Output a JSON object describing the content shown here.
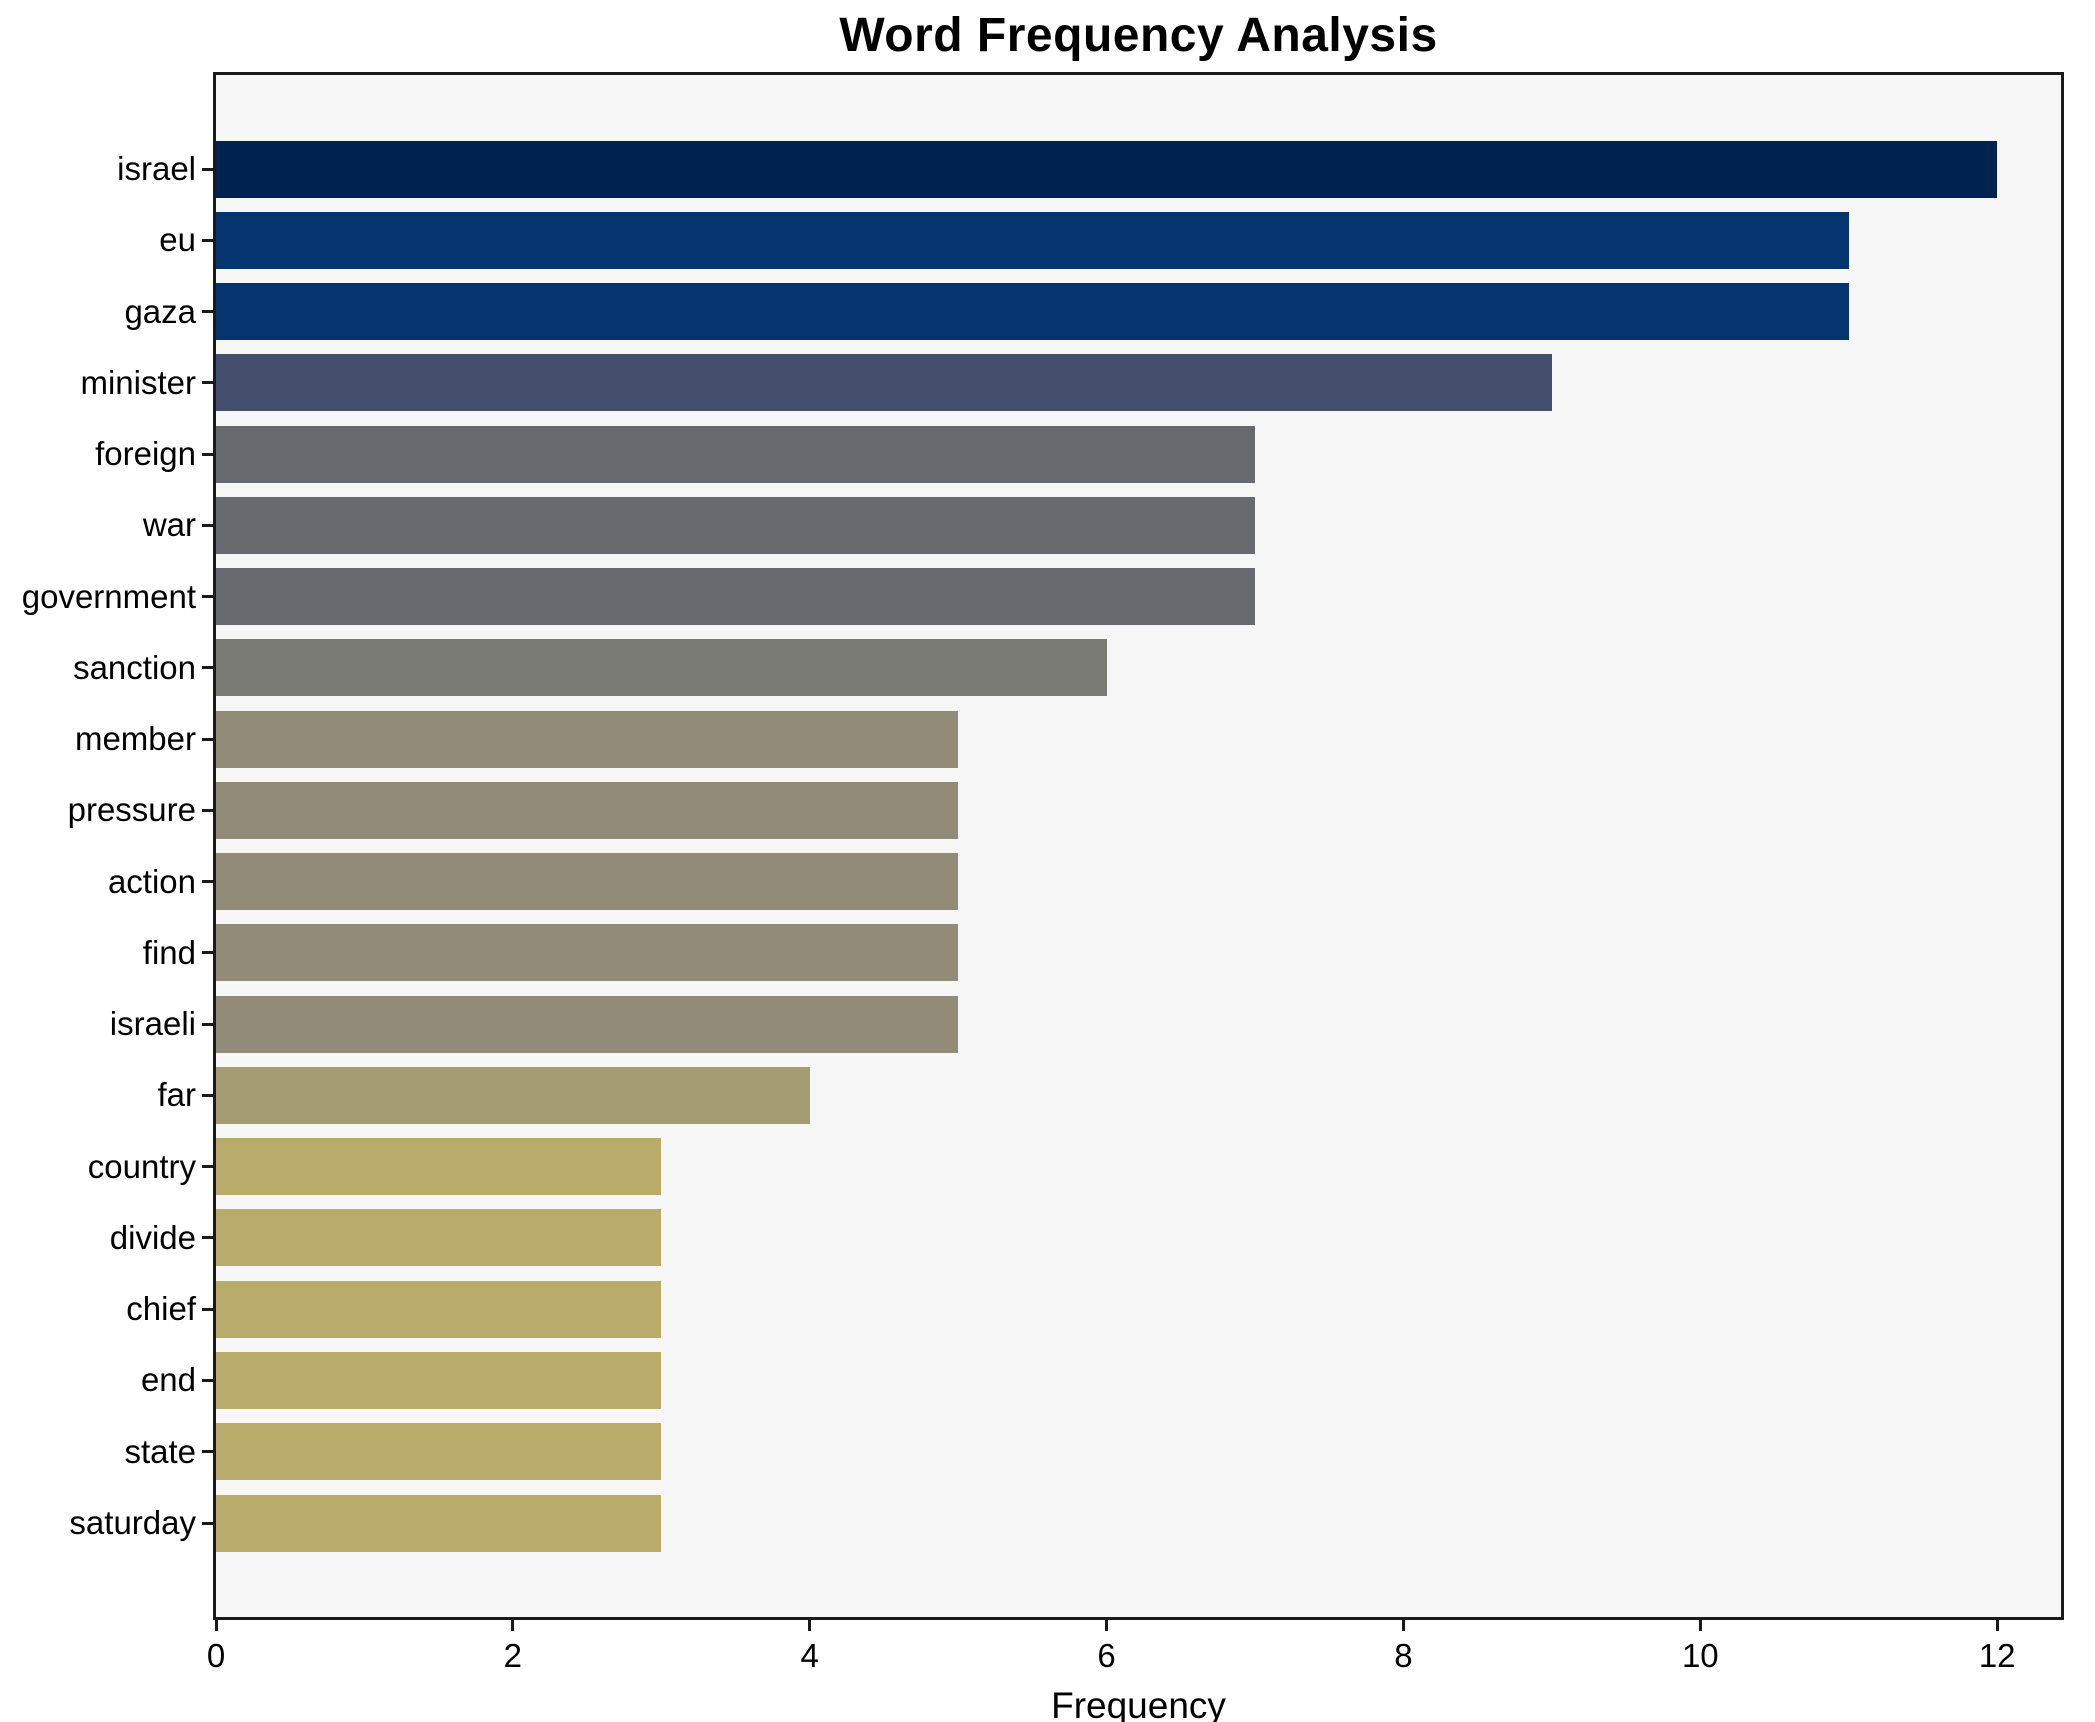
{
  "title": "Word Frequency Analysis",
  "chart_data": {
    "type": "bar",
    "orientation": "horizontal",
    "title": "Word Frequency Analysis",
    "xlabel": "Frequency",
    "ylabel": "",
    "categories": [
      "israel",
      "eu",
      "gaza",
      "minister",
      "foreign",
      "war",
      "government",
      "sanction",
      "member",
      "pressure",
      "action",
      "find",
      "israeli",
      "far",
      "country",
      "divide",
      "chief",
      "end",
      "state",
      "saturday"
    ],
    "values": [
      12,
      11,
      11,
      9,
      7,
      7,
      7,
      6,
      5,
      5,
      5,
      5,
      5,
      4,
      3,
      3,
      3,
      3,
      3,
      3
    ],
    "bar_colors": [
      "#00224f",
      "#05356f",
      "#05356f",
      "#424e6c",
      "#67696f",
      "#67696f",
      "#67696f",
      "#7b7b76",
      "#918b78",
      "#918b78",
      "#918b78",
      "#918b78",
      "#918b78",
      "#a49c72",
      "#b9ac6a",
      "#b9ac6a",
      "#b9ac6a",
      "#b9ac6a",
      "#b9ac6a",
      "#b9ac6a"
    ],
    "x_ticks": [
      0,
      2,
      4,
      6,
      8,
      10,
      12
    ],
    "xlim": [
      0,
      12.43
    ],
    "grid": false,
    "legend": null,
    "plot_background": "#f6f6f7",
    "figure_background": "#ffffff",
    "axis_color": "#1a1a1a",
    "colormap_note": "cividis-like gradient mapped to frequency: dark navy (high) to khaki (low)"
  }
}
